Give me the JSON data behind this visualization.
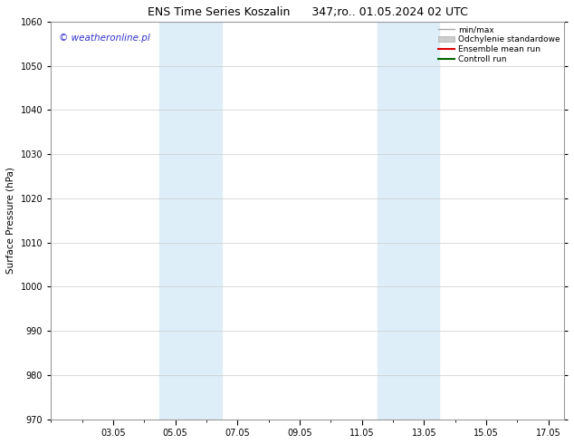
{
  "title": "ENS Time Series Koszalin      347;ro.. 01.05.2024 02 UTC",
  "ylabel": "Surface Pressure (hPa)",
  "xlabel": "",
  "ylim": [
    970,
    1060
  ],
  "yticks": [
    970,
    980,
    990,
    1000,
    1010,
    1020,
    1030,
    1040,
    1050,
    1060
  ],
  "xlim": [
    0.0,
    16.5
  ],
  "xtick_labels": [
    "03.05",
    "05.05",
    "07.05",
    "09.05",
    "11.05",
    "13.05",
    "15.05",
    "17.05"
  ],
  "xtick_positions": [
    2,
    4,
    6,
    8,
    10,
    12,
    14,
    16
  ],
  "shaded_regions": [
    {
      "start": 3.5,
      "end": 5.5,
      "color": "#ddeef8"
    },
    {
      "start": 10.5,
      "end": 12.5,
      "color": "#ddeef8"
    }
  ],
  "watermark_text": "© weatheronline.pl",
  "watermark_color": "#3333cc",
  "watermark_fontsize": 7.5,
  "background_color": "#ffffff",
  "grid_color": "#cccccc",
  "legend_entries": [
    {
      "label": "min/max",
      "color": "#aaaaaa",
      "linewidth": 1.0,
      "linestyle": "-",
      "type": "line"
    },
    {
      "label": "Odchylenie standardowe",
      "color": "#cccccc",
      "edgecolor": "#aaaaaa",
      "type": "patch"
    },
    {
      "label": "Ensemble mean run",
      "color": "#dd0000",
      "linewidth": 1.5,
      "linestyle": "-",
      "type": "line"
    },
    {
      "label": "Controll run",
      "color": "#006600",
      "linewidth": 1.5,
      "linestyle": "-",
      "type": "line"
    }
  ],
  "title_fontsize": 9,
  "axis_label_fontsize": 7.5,
  "tick_fontsize": 7,
  "legend_fontsize": 6.5
}
